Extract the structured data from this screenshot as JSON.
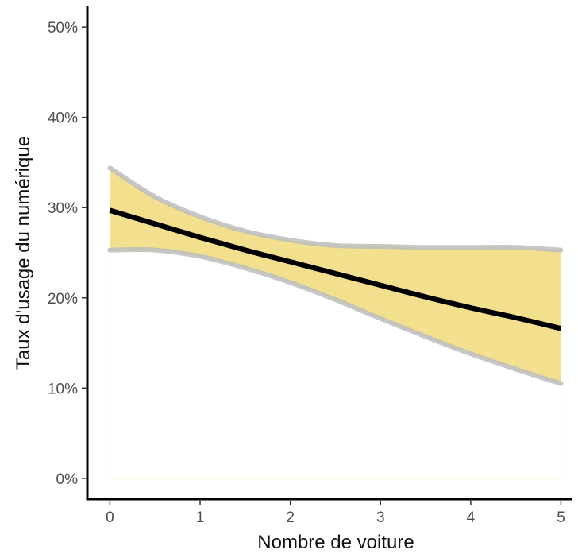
{
  "chart_data": {
    "type": "line",
    "xlabel": "Nombre de voiture",
    "ylabel": "Taux d'usage du numérique",
    "xlim": [
      -0.25,
      5.0
    ],
    "ylim": [
      -0.023,
      0.523
    ],
    "x_ticks": [
      0,
      1,
      2,
      3,
      4,
      5
    ],
    "x_tick_labels": [
      "0",
      "1",
      "2",
      "3",
      "4",
      "5"
    ],
    "y_ticks": [
      0,
      0.1,
      0.2,
      0.3,
      0.4,
      0.5
    ],
    "y_tick_labels": [
      "0%",
      "10%",
      "20%",
      "30%",
      "40%",
      "50%"
    ],
    "grid": false,
    "series": [
      {
        "x": [
          0,
          0.5,
          1,
          1.5,
          2,
          2.5,
          3,
          3.5,
          4,
          4.5,
          5
        ],
        "y": [
          0.297,
          0.282,
          0.267,
          0.253,
          0.24,
          0.227,
          0.214,
          0.201,
          0.189,
          0.178,
          0.166
        ],
        "lower": [
          0.253,
          0.253,
          0.246,
          0.233,
          0.217,
          0.198,
          0.177,
          0.157,
          0.138,
          0.121,
          0.105
        ],
        "upper": [
          0.344,
          0.312,
          0.29,
          0.274,
          0.264,
          0.258,
          0.257,
          0.256,
          0.256,
          0.256,
          0.253
        ]
      }
    ],
    "colors": {
      "line": "#000000",
      "band_fill": "#f2e08e",
      "band_edge": "#bdbdbd"
    }
  }
}
